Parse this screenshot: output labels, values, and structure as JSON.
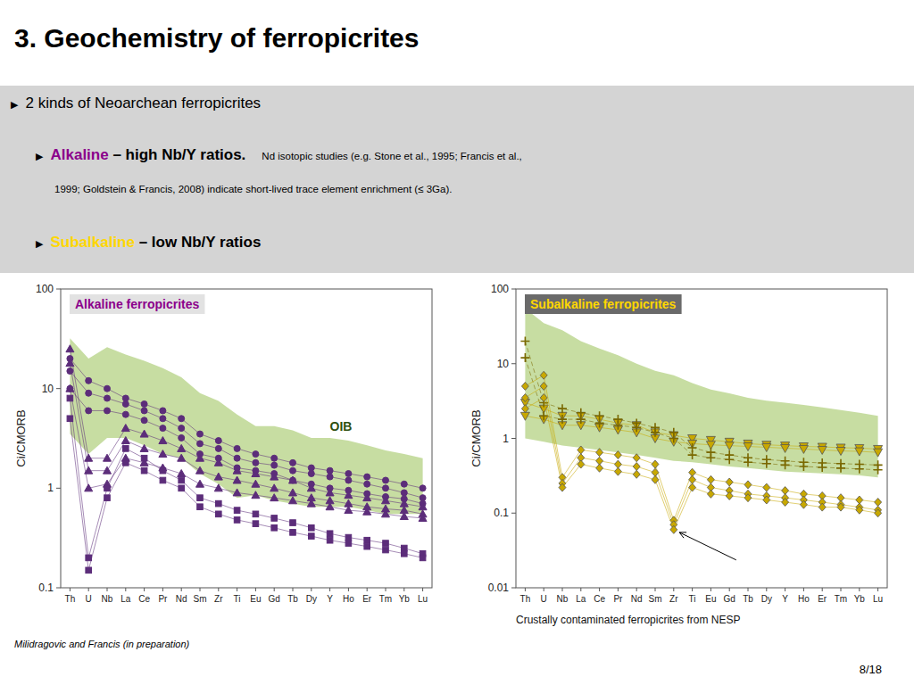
{
  "title": "3. Geochemistry of ferropicrites",
  "bullet": "▶",
  "bullets": [
    {
      "level": 1,
      "lines": [
        [
          {
            "text": "2 kinds of Neoarchean ferropicrites"
          }
        ]
      ]
    },
    {
      "level": 2,
      "lines": [
        [
          {
            "text": "Alkaline",
            "color": "#8B008B",
            "bold": true
          },
          {
            "text": " – high Nb/Y ratios.",
            "bold": true
          },
          {
            "text": "Nd isotopic studies (e.g. Stone et al., 1995; Francis et al.,"
          }
        ],
        [
          {
            "text": "1999; Goldstein & Francis, 2008) indicate short-lived trace element enrichment (≤ 3Ga)."
          }
        ]
      ]
    },
    {
      "level": 2,
      "lines": [
        [
          {
            "text": "Subalkaline",
            "color": "#FFD700",
            "bold": true
          },
          {
            "text": " – low Nb/Y ratios",
            "bold": true
          }
        ]
      ]
    }
  ],
  "footer": "Milidragovic and Francis (in preparation)",
  "page": "8/18",
  "chart_data": [
    {
      "type": "line",
      "title": "Alkaline ferropicrites",
      "color": "#8B008B",
      "y_label": "Ci/CMORB",
      "log": "y",
      "categories": [
        "Th",
        "U",
        "Nb",
        "La",
        "Ce",
        "Pr",
        "Nd",
        "Sm",
        "Zr",
        "Ti",
        "Eu",
        "Gd",
        "Tb",
        "Dy",
        "Y",
        "Ho",
        "Er",
        "Tm",
        "Yb",
        "Lu"
      ],
      "ylim": [
        0.1,
        100
      ],
      "yticks": [
        0.1,
        1,
        10,
        100
      ],
      "series": [
        {
          "name": "OIB",
          "type": "band",
          "color": "#8FBC45",
          "values": [
            32,
            20,
            26,
            22,
            19,
            16,
            13,
            9,
            7.5,
            5.5,
            4.2,
            4.2,
            3.8,
            3.2,
            3.2,
            3.0,
            2.7,
            2.4,
            2.2,
            2.0
          ],
          "lower_values": [
            3.5,
            2.2,
            3.2,
            3.2,
            2.7,
            2.2,
            2.0,
            1.4,
            1.1,
            0.8,
            0.85,
            0.75,
            0.7,
            0.65,
            0.65,
            0.65,
            0.6,
            0.55,
            0.55,
            0.55
          ]
        },
        {
          "color": "#5C2D7A",
          "marker": "circle",
          "line_style": "solid",
          "values": [
            20,
            12,
            10,
            8,
            7,
            6,
            5,
            3.5,
            3.0,
            2.5,
            2.2,
            2.0,
            1.8,
            1.6,
            1.5,
            1.4,
            1.3,
            1.2,
            1.1,
            1.0
          ]
        },
        {
          "color": "#5C2D7A",
          "marker": "circle",
          "line_style": "solid",
          "values": [
            15,
            9,
            8,
            7,
            6,
            5,
            4,
            2.8,
            2.5,
            2.0,
            1.8,
            1.7,
            1.5,
            1.4,
            1.3,
            1.2,
            1.1,
            1.0,
            0.9,
            0.8
          ]
        },
        {
          "color": "#5C2D7A",
          "marker": "circle",
          "line_style": "solid",
          "values": [
            10,
            6,
            6,
            5.5,
            4.8,
            4.0,
            3.2,
            2.2,
            2.0,
            1.6,
            1.5,
            1.4,
            1.2,
            1.1,
            1.0,
            0.95,
            0.88,
            0.82,
            0.78,
            0.7
          ]
        },
        {
          "color": "#5C2D7A",
          "marker": "triangle",
          "line_style": "solid",
          "values": [
            25,
            2.0,
            2.0,
            4.0,
            3.5,
            3.0,
            2.5,
            2.0,
            1.8,
            1.5,
            1.4,
            1.3,
            1.2,
            1.0,
            0.9,
            0.85,
            0.8,
            0.75,
            0.7,
            0.65
          ]
        },
        {
          "color": "#5C2D7A",
          "marker": "triangle",
          "line_style": "solid",
          "values": [
            18,
            1.5,
            1.5,
            3.0,
            2.5,
            2.2,
            2.0,
            1.5,
            1.3,
            1.2,
            1.1,
            1.0,
            0.9,
            0.8,
            0.75,
            0.7,
            0.65,
            0.62,
            0.6,
            0.55
          ]
        },
        {
          "color": "#5C2D7A",
          "marker": "triangle",
          "line_style": "solid",
          "values": [
            10,
            1.0,
            1.1,
            2.0,
            1.8,
            1.6,
            1.4,
            1.1,
            1.0,
            0.9,
            0.85,
            0.8,
            0.75,
            0.7,
            0.65,
            0.6,
            0.58,
            0.55,
            0.52,
            0.5
          ]
        },
        {
          "color": "#5C2D7A",
          "marker": "square",
          "line_style": "solid",
          "values": [
            8,
            0.2,
            1.0,
            2.5,
            2.0,
            1.5,
            1.2,
            0.8,
            0.7,
            0.6,
            0.55,
            0.5,
            0.45,
            0.4,
            0.35,
            0.32,
            0.3,
            0.28,
            0.25,
            0.22
          ]
        },
        {
          "color": "#5C2D7A",
          "marker": "square",
          "line_style": "solid",
          "values": [
            5,
            0.15,
            0.8,
            1.8,
            1.5,
            1.2,
            1.0,
            0.65,
            0.55,
            0.48,
            0.44,
            0.4,
            0.36,
            0.33,
            0.3,
            0.28,
            0.26,
            0.24,
            0.22,
            0.2
          ]
        }
      ]
    },
    {
      "type": "line",
      "title": "Subalkaline ferropicrites",
      "color": "#FFD700",
      "y_label": "Ci/CMORB",
      "log": "y",
      "categories": [
        "Th",
        "U",
        "Nb",
        "La",
        "Ce",
        "Pr",
        "Nd",
        "Sm",
        "Zr",
        "Ti",
        "Eu",
        "Gd",
        "Tb",
        "Dy",
        "Y",
        "Ho",
        "Er",
        "Tm",
        "Yb",
        "Lu"
      ],
      "ylim": [
        0.01,
        100
      ],
      "yticks": [
        0.01,
        0.1,
        1,
        10,
        100
      ],
      "annotations": [
        "Crustally contaminated ferropicrites from NESP"
      ],
      "series": [
        {
          "type": "band",
          "color": "#8FBC45",
          "values": [
            55,
            35,
            28,
            20,
            16,
            13,
            10,
            8,
            7,
            5.5,
            4.5,
            4.0,
            3.5,
            3.2,
            3.0,
            2.8,
            2.6,
            2.4,
            2.2,
            2.0
          ],
          "lower_values": [
            1.0,
            0.9,
            0.8,
            0.75,
            0.7,
            0.65,
            0.6,
            0.55,
            0.5,
            0.48,
            0.45,
            0.42,
            0.4,
            0.38,
            0.36,
            0.35,
            0.34,
            0.33,
            0.32,
            0.3
          ]
        },
        {
          "color": "#C8A800",
          "marker": "triangle-down",
          "line_style": "solid",
          "values": [
            3.0,
            2.5,
            2.0,
            2.0,
            1.8,
            1.6,
            1.5,
            1.2,
            1.1,
            1.0,
            0.95,
            0.9,
            0.85,
            0.82,
            0.8,
            0.78,
            0.77,
            0.75,
            0.74,
            0.72
          ]
        },
        {
          "color": "#C8A800",
          "marker": "triangle-down",
          "line_style": "solid",
          "values": [
            2.0,
            1.8,
            1.5,
            1.5,
            1.4,
            1.3,
            1.2,
            1.0,
            0.9,
            0.85,
            0.82,
            0.8,
            0.78,
            0.76,
            0.74,
            0.72,
            0.7,
            0.68,
            0.67,
            0.65
          ]
        },
        {
          "color": "#7a6800",
          "marker": "plus",
          "line_style": "dashed",
          "values": [
            20,
            3.0,
            2.5,
            2.2,
            2.0,
            1.8,
            1.6,
            1.4,
            1.2,
            0.75,
            0.65,
            0.6,
            0.55,
            0.52,
            0.5,
            0.48,
            0.47,
            0.46,
            0.45,
            0.44
          ]
        },
        {
          "color": "#7a6800",
          "marker": "plus",
          "line_style": "dashed",
          "values": [
            12,
            2.0,
            1.8,
            1.8,
            1.6,
            1.5,
            1.4,
            1.2,
            1.0,
            0.6,
            0.55,
            0.52,
            0.48,
            0.46,
            0.44,
            0.42,
            0.41,
            0.4,
            0.39,
            0.38
          ]
        },
        {
          "color": "#C8A800",
          "marker": "diamond",
          "line_style": "solid",
          "values": [
            5.0,
            7.0,
            0.3,
            0.7,
            0.65,
            0.6,
            0.55,
            0.45,
            0.08,
            0.35,
            0.28,
            0.26,
            0.24,
            0.22,
            0.2,
            0.18,
            0.17,
            0.16,
            0.15,
            0.14
          ]
        },
        {
          "color": "#C8A800",
          "marker": "diamond",
          "line_style": "solid",
          "values": [
            3.5,
            5.0,
            0.25,
            0.55,
            0.5,
            0.45,
            0.42,
            0.35,
            0.07,
            0.28,
            0.22,
            0.2,
            0.18,
            0.17,
            0.16,
            0.15,
            0.14,
            0.13,
            0.12,
            0.11
          ]
        },
        {
          "color": "#C8A800",
          "marker": "diamond",
          "line_style": "solid",
          "values": [
            2.5,
            3.5,
            0.22,
            0.45,
            0.4,
            0.36,
            0.33,
            0.28,
            0.06,
            0.22,
            0.18,
            0.17,
            0.16,
            0.15,
            0.14,
            0.13,
            0.12,
            0.12,
            0.11,
            0.1
          ]
        }
      ]
    }
  ]
}
